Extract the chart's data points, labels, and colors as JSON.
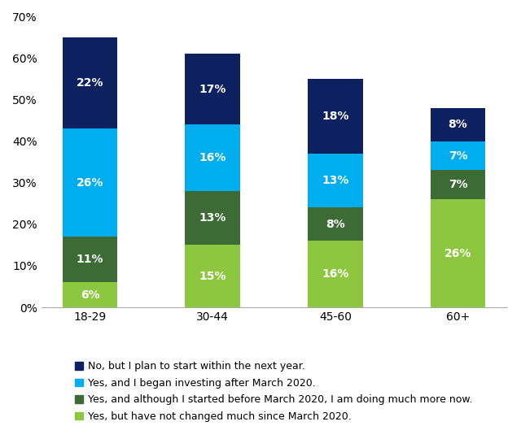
{
  "categories": [
    "18-29",
    "30-44",
    "45-60",
    "60+"
  ],
  "series": [
    {
      "label": "Yes, but have not changed much since March 2020.",
      "values": [
        6,
        15,
        16,
        26
      ],
      "color": "#8dc63f"
    },
    {
      "label": "Yes, and although I started before March 2020, I am doing much more now.",
      "values": [
        11,
        13,
        8,
        7
      ],
      "color": "#3d6b35"
    },
    {
      "label": "Yes, and I began investing after March 2020.",
      "values": [
        26,
        16,
        13,
        7
      ],
      "color": "#00aeef"
    },
    {
      "label": "No, but I plan to start within the next year.",
      "values": [
        22,
        17,
        18,
        8
      ],
      "color": "#0d2060"
    }
  ],
  "legend_order": [
    3,
    2,
    1,
    0
  ],
  "ylim": [
    0,
    70
  ],
  "yticks": [
    0,
    10,
    20,
    30,
    40,
    50,
    60,
    70
  ],
  "ytick_labels": [
    "0%",
    "10%",
    "20%",
    "30%",
    "40%",
    "50%",
    "60%",
    "70%"
  ],
  "bar_width": 0.45,
  "label_fontsize": 10,
  "tick_fontsize": 10,
  "legend_fontsize": 9,
  "background_color": "#ffffff",
  "text_color": "#000000",
  "label_text_color": "#ffffff"
}
